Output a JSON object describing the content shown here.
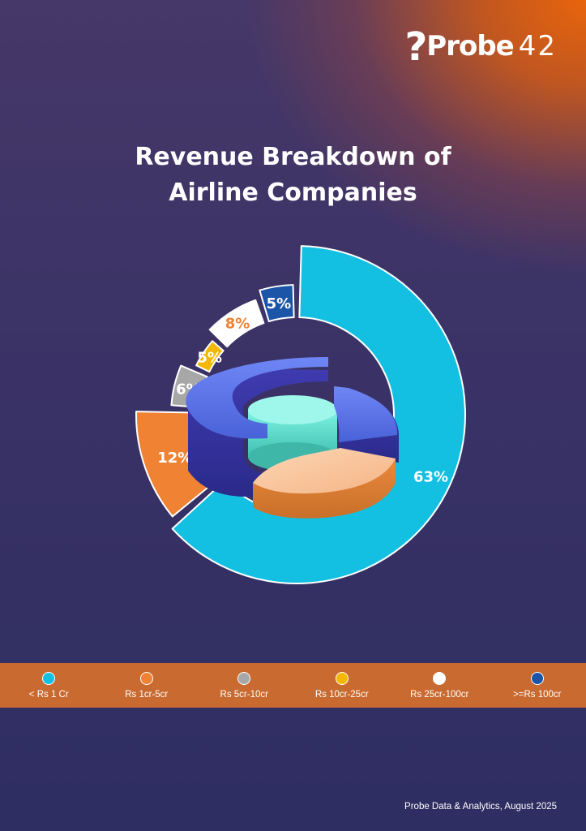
{
  "brand": {
    "logo_text": "Probe",
    "logo_mark": "?",
    "logo_number": "42"
  },
  "chart_data": {
    "type": "pie",
    "title_line1": "Revenue Breakdown of",
    "title_line2": "Airline Companies",
    "categories": [
      "< Rs 1 Cr",
      "Rs 1cr-5cr",
      "Rs 5cr-10cr",
      "Rs 10cr-25cr",
      "Rs 25cr-100cr",
      ">=Rs 100cr"
    ],
    "values": [
      63,
      12,
      6,
      5,
      8,
      5
    ],
    "labels": [
      "63%",
      "12%",
      "6%",
      "5%",
      "8%",
      "5%"
    ],
    "colors": [
      "#14c0e2",
      "#ef8233",
      "#a7a7a7",
      "#f5b800",
      "#ffffff",
      "#1a55a8"
    ],
    "label_colors": [
      "#ffffff",
      "#ffffff",
      "#ffffff",
      "#ffffff",
      "#ef8233",
      "#ffffff"
    ],
    "legend_position": "bottom"
  },
  "footer": {
    "source": "Probe Data & Analytics, August 2025"
  }
}
